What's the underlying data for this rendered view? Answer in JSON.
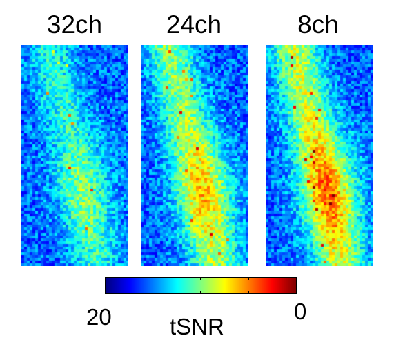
{
  "panels": [
    {
      "title": "32ch",
      "seed": 11,
      "level": 0.32
    },
    {
      "title": "24ch",
      "seed": 27,
      "level": 0.52
    },
    {
      "title": "8ch",
      "seed": 53,
      "level": 0.62
    }
  ],
  "colorbar": {
    "min_label": "20",
    "max_label": "0",
    "title": "tSNR",
    "colormap": "jet"
  }
}
